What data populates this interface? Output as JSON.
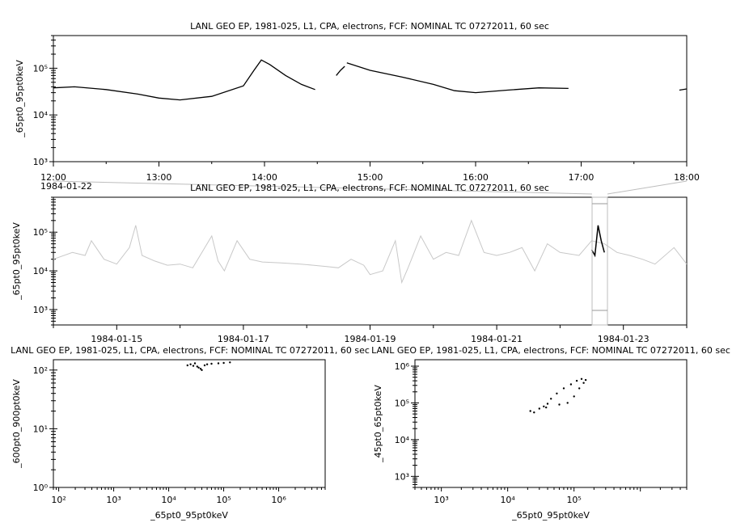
{
  "chart_data": [
    {
      "type": "line",
      "title": "LANL GEO EP, 1981-025, L1, CPA, electrons, FCF: NOMINAL TC 07272011, 60 sec",
      "ylabel": "_65pt0_95pt0keV",
      "yscale": "log",
      "ylim": [
        1000,
        500000
      ],
      "ytick_labels": [
        "10³",
        "10⁴",
        "10⁵"
      ],
      "x_tick_labels": [
        "12:00",
        "13:00",
        "14:00",
        "15:00",
        "16:00",
        "17:00",
        "18:00"
      ],
      "date_label": "1984-01-22",
      "series": [
        {
          "color": "#000000",
          "segments": [
            {
              "x": [
                12.0,
                12.2,
                12.5,
                12.8,
                13.0,
                13.2,
                13.5,
                13.8,
                13.9,
                13.97,
                14.05,
                14.2,
                14.35,
                14.48
              ],
              "y": [
                38000,
                40000,
                35000,
                28000,
                23000,
                21000,
                25000,
                42000,
                90000,
                150000,
                120000,
                70000,
                45000,
                35000
              ]
            },
            {
              "x": [
                14.68,
                14.72,
                14.76
              ],
              "y": [
                70000,
                90000,
                110000
              ]
            },
            {
              "x": [
                14.78,
                15.0,
                15.3,
                15.6,
                15.8,
                16.0,
                16.3,
                16.6,
                16.88
              ],
              "y": [
                130000,
                90000,
                65000,
                45000,
                33000,
                30000,
                34000,
                38000,
                37000
              ]
            },
            {
              "x": [
                17.93,
                18.0
              ],
              "y": [
                34000,
                36000
              ]
            }
          ]
        }
      ]
    },
    {
      "type": "line",
      "title": "LANL GEO EP, 1981-025, L1, CPA, electrons, FCF: NOMINAL TC 07272011, 60 sec",
      "ylabel": "_65pt0_95pt0keV",
      "yscale": "log",
      "ylim": [
        400,
        800000
      ],
      "ytick_labels": [
        "10³",
        "10⁴",
        "10⁵"
      ],
      "x_tick_labels": [
        "1984-01-15",
        "1984-01-17",
        "1984-01-19",
        "1984-01-21",
        "1984-01-23"
      ],
      "series": [
        {
          "color": "#c8c8c8",
          "x_start": "1984-01-14",
          "x_end": "1984-01-24",
          "x_unit": "days",
          "x": [
            14.0,
            14.3,
            14.5,
            14.6,
            14.8,
            15.0,
            15.2,
            15.3,
            15.4,
            15.6,
            15.8,
            16.0,
            16.2,
            16.5,
            16.6,
            16.7,
            16.9,
            17.1,
            17.3,
            17.6,
            17.9,
            18.1,
            18.3,
            18.5,
            18.7,
            18.9,
            19.0,
            19.2,
            19.4,
            19.5,
            19.6,
            19.8,
            20.0,
            20.2,
            20.4,
            20.6,
            20.8,
            21.0,
            21.2,
            21.4,
            21.6,
            21.8,
            22.0,
            22.3,
            22.5,
            22.7,
            22.9,
            23.1,
            23.3,
            23.5,
            23.8,
            24.0
          ],
          "y": [
            20000,
            30000,
            25000,
            60000,
            20000,
            15000,
            40000,
            150000,
            25000,
            18000,
            14000,
            15000,
            12000,
            80000,
            18000,
            10000,
            60000,
            20000,
            17000,
            16000,
            15000,
            14000,
            13000,
            12000,
            20000,
            14000,
            8000,
            10000,
            60000,
            5000,
            12000,
            80000,
            20000,
            30000,
            25000,
            200000,
            30000,
            25000,
            30000,
            40000,
            10000,
            50000,
            30000,
            25000,
            60000,
            50000,
            30000,
            25000,
            20000,
            15000,
            40000,
            15000
          ]
        },
        {
          "color": "#000000",
          "x_start": "1984-01-22",
          "x_end": "1984-01-23",
          "x": [
            22.5,
            22.55,
            22.6,
            22.65,
            22.7
          ],
          "y": [
            35000,
            25000,
            150000,
            60000,
            30000
          ]
        }
      ]
    },
    {
      "type": "scatter",
      "title": "LANL GEO EP, 1981-025, L1, CPA, electrons, FCF: NOMINAL TC 07272011, 60 sec",
      "xlabel": "_65pt0_95pt0keV",
      "ylabel": "_600pt0_900pt0keV",
      "xscale": "log",
      "yscale": "log",
      "xlim": [
        80,
        7000000
      ],
      "ylim": [
        1,
        150
      ],
      "x_tick_labels": [
        "10²",
        "10³",
        "10⁴",
        "10⁵",
        "10⁶"
      ],
      "y_tick_labels": [
        "10⁰",
        "10¹",
        "10²"
      ],
      "x": [
        22000,
        25000,
        28000,
        30000,
        33000,
        35000,
        38000,
        40000,
        45000,
        50000,
        60000,
        80000,
        100000,
        130000
      ],
      "y": [
        120,
        125,
        118,
        130,
        115,
        110,
        105,
        100,
        120,
        125,
        128,
        130,
        132,
        135
      ]
    },
    {
      "type": "scatter",
      "title": "LANL GEO EP, 1981-025, L1, CPA, electrons, FCF: NOMINAL TC 07272011, 60 sec",
      "xlabel": "_65pt0_95pt0keV",
      "ylabel": "_45pt0_65pt0keV",
      "xscale": "log",
      "yscale": "log",
      "xlim": [
        400,
        5000000
      ],
      "ylim": [
        500,
        1500000
      ],
      "x_tick_labels": [
        "10³",
        "10⁴",
        "10⁵"
      ],
      "y_tick_labels": [
        "10³",
        "10⁴",
        "10⁵",
        "10⁶"
      ],
      "x": [
        22000,
        25000,
        30000,
        35000,
        38000,
        40000,
        45000,
        55000,
        70000,
        90000,
        110000,
        130000,
        150000,
        140000,
        120000,
        100000,
        80000,
        60000
      ],
      "y": [
        60000,
        55000,
        70000,
        80000,
        75000,
        95000,
        130000,
        180000,
        250000,
        320000,
        400000,
        450000,
        420000,
        350000,
        250000,
        150000,
        100000,
        90000
      ]
    }
  ]
}
